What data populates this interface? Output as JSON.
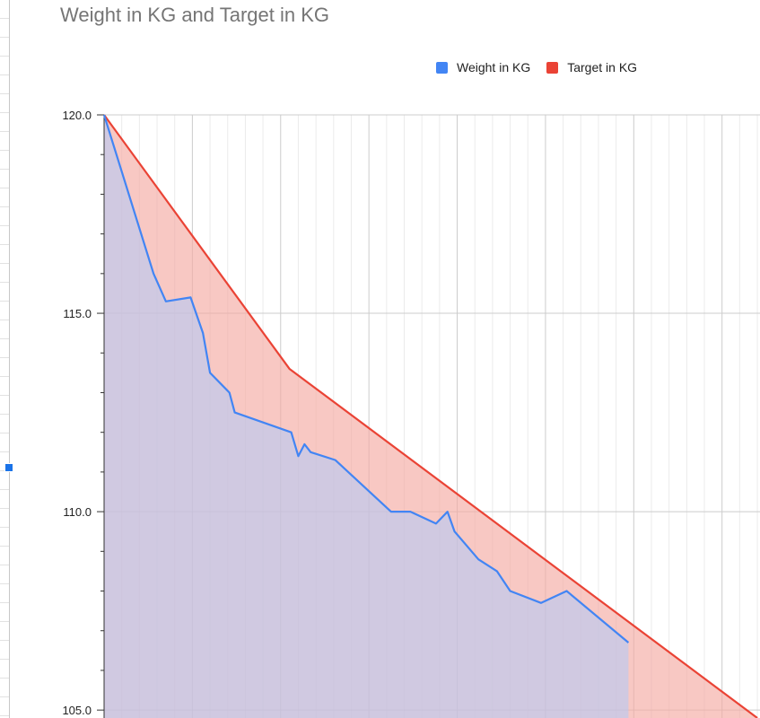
{
  "chart_data": {
    "type": "area",
    "title": "Weight in KG and Target in KG",
    "xlabel": "",
    "ylabel": "",
    "ylim": [
      104.8,
      120.0
    ],
    "xlim": [
      0,
      74
    ],
    "y_ticks": [
      105,
      110,
      115,
      120
    ],
    "y_tick_labels": [
      "105.0",
      "110.0",
      "115.0",
      "120.0"
    ],
    "y_minor_step": 1,
    "x_major_every": 10,
    "x_minor_every": 2,
    "grid": true,
    "legend_position": "top-right",
    "series": [
      {
        "name": "Weight in KG",
        "color": "#4285f4",
        "fill_color": "#aecbfa",
        "x": [
          0,
          5.6,
          7,
          9.8,
          11.2,
          12,
          14.2,
          14.8,
          21.2,
          22,
          22.7,
          23.4,
          26.2,
          32.5,
          34.7,
          37.6,
          38.9,
          39.7,
          42.4,
          44.5,
          46,
          49.5,
          52.4,
          59.4
        ],
        "values": [
          120.0,
          116.0,
          115.3,
          115.4,
          114.5,
          113.5,
          113.0,
          112.5,
          112.0,
          111.4,
          111.7,
          111.5,
          111.3,
          110.0,
          110.0,
          109.7,
          110.0,
          109.5,
          108.8,
          108.5,
          108.0,
          107.7,
          108.0,
          106.7
        ]
      },
      {
        "name": "Target in KG",
        "color": "#ea4335",
        "fill_color": "#f5aaa3",
        "x": [
          0,
          21,
          74
        ],
        "values": [
          120.0,
          113.6,
          104.8
        ]
      }
    ]
  }
}
